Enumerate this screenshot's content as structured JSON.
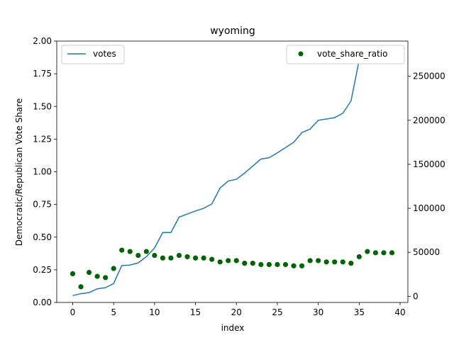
{
  "chart_data": {
    "type": "line",
    "title": "wyoming",
    "xlabel": "index",
    "ylabel": "Democratic/Republican Vote Share",
    "y2label": "",
    "xlim": [
      -1.95,
      40.95
    ],
    "ylim": [
      0,
      2.0
    ],
    "y2lim": [
      -7000,
      290000
    ],
    "x_ticks": [
      0,
      5,
      10,
      15,
      20,
      25,
      30,
      35,
      40
    ],
    "y_ticks": [
      0.0,
      0.25,
      0.5,
      0.75,
      1.0,
      1.25,
      1.5,
      1.75,
      2.0
    ],
    "y2_ticks": [
      0,
      50000,
      100000,
      150000,
      200000,
      250000
    ],
    "x_tick_labels": [
      "0",
      "5",
      "10",
      "15",
      "20",
      "25",
      "30",
      "35",
      "40"
    ],
    "y_tick_labels": [
      "0.00",
      "0.25",
      "0.50",
      "0.75",
      "1.00",
      "1.25",
      "1.50",
      "1.75",
      "2.00"
    ],
    "y2_tick_labels": [
      "0",
      "50000",
      "100000",
      "150000",
      "200000",
      "250000"
    ],
    "grid": false,
    "series": [
      {
        "name": "votes",
        "type": "line",
        "axis": "right",
        "color": "#1f77b4",
        "legend_position": "upper-left",
        "x": [
          0,
          1,
          2,
          3,
          4,
          5,
          6,
          7,
          8,
          9,
          10,
          11,
          12,
          13,
          14,
          15,
          16,
          17,
          18,
          19,
          20,
          21,
          22,
          23,
          24,
          25,
          26,
          27,
          28,
          29,
          30,
          31,
          32,
          33,
          34,
          35,
          36,
          37,
          38,
          39
        ],
        "values": [
          800,
          3000,
          4200,
          8500,
          9800,
          14500,
          35000,
          35500,
          38000,
          45000,
          55000,
          72500,
          72500,
          90000,
          93500,
          97000,
          100000,
          105000,
          123000,
          131000,
          133000,
          140000,
          148000,
          156000,
          157500,
          163000,
          169000,
          175000,
          186000,
          190000,
          200000,
          201500,
          203000,
          208000,
          222000,
          268500,
          271500,
          276500,
          276500,
          276500
        ]
      },
      {
        "name": "vote_share_ratio",
        "type": "scatter",
        "axis": "left",
        "color": "#006400",
        "legend_position": "upper-right",
        "x": [
          0,
          1,
          2,
          3,
          4,
          5,
          6,
          7,
          8,
          9,
          10,
          11,
          12,
          13,
          14,
          15,
          16,
          17,
          18,
          19,
          20,
          21,
          22,
          23,
          24,
          25,
          26,
          27,
          28,
          29,
          30,
          31,
          32,
          33,
          34,
          35,
          36,
          37,
          38,
          39
        ],
        "values": [
          0.22,
          0.12,
          0.23,
          0.2,
          0.19,
          0.26,
          0.4,
          0.39,
          0.36,
          0.39,
          0.36,
          0.34,
          0.34,
          0.36,
          0.35,
          0.34,
          0.34,
          0.33,
          0.31,
          0.32,
          0.32,
          0.3,
          0.3,
          0.29,
          0.29,
          0.29,
          0.29,
          0.28,
          0.28,
          0.32,
          0.32,
          0.31,
          0.31,
          0.31,
          0.3,
          0.35,
          0.39,
          0.38,
          0.38,
          0.38
        ]
      }
    ]
  }
}
